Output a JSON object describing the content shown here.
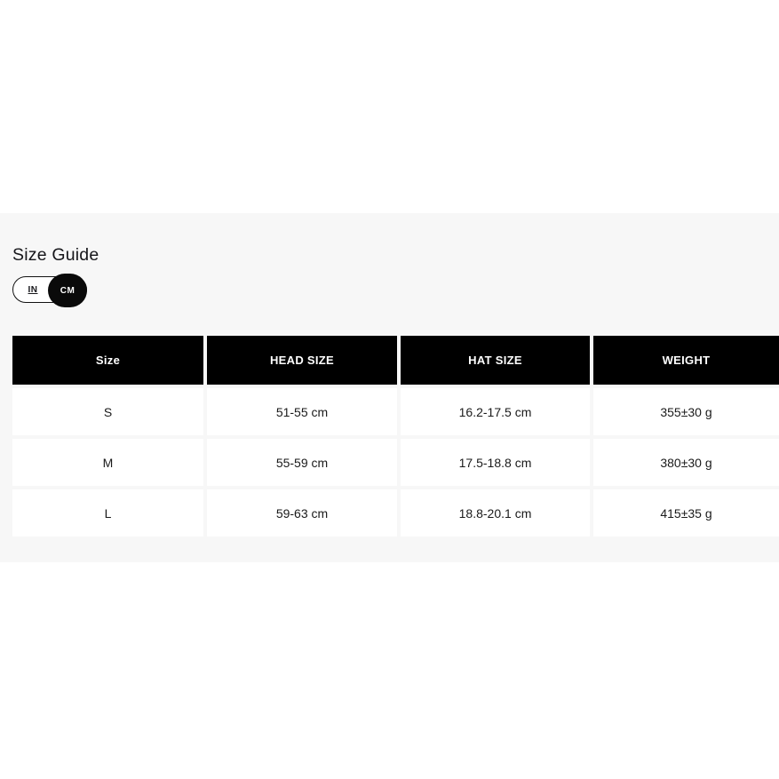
{
  "size_guide": {
    "title": "Size Guide",
    "unit_toggle": {
      "in_label": "IN",
      "cm_label": "CM",
      "selected": "CM"
    },
    "table": {
      "headers": [
        "Size",
        "HEAD SIZE",
        "HAT SIZE",
        "WEIGHT"
      ],
      "rows": [
        {
          "size": "S",
          "head_size": "51-55 cm",
          "hat_size": "16.2-17.5 cm",
          "weight": "355±30 g"
        },
        {
          "size": "M",
          "head_size": "55-59 cm",
          "hat_size": "17.5-18.8 cm",
          "weight": "380±30 g"
        },
        {
          "size": "L",
          "head_size": "59-63 cm",
          "hat_size": "18.8-20.1 cm",
          "weight": "415±35 g"
        }
      ]
    },
    "colors": {
      "section_bg": "#f7f7f7",
      "header_bg": "#000000",
      "header_text": "#ffffff",
      "cell_bg": "#ffffff",
      "body_text": "#1a1a1a",
      "toggle_active_bg": "#0a0a0a"
    }
  }
}
